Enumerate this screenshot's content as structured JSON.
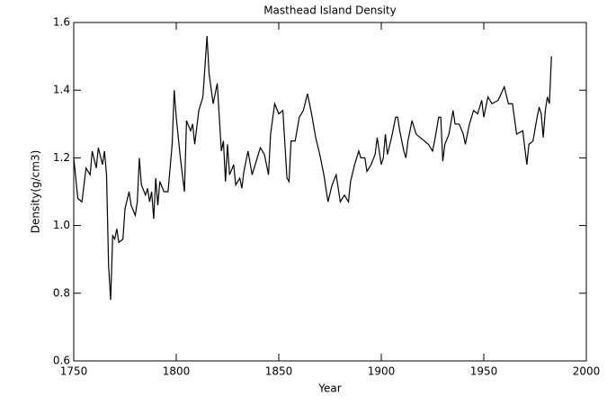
{
  "chart_data": {
    "type": "line",
    "title": "Masthead Island Density",
    "xlabel": "Year",
    "ylabel": "Density(g/cm3)",
    "color": "#000000",
    "x": [
      1750,
      1752,
      1754,
      1756,
      1758,
      1759,
      1761,
      1762,
      1764,
      1765,
      1766,
      1767,
      1768,
      1769,
      1770,
      1771,
      1772,
      1774,
      1775,
      1777,
      1778,
      1780,
      1781,
      1782,
      1783,
      1785,
      1786,
      1787,
      1788,
      1789,
      1790,
      1791,
      1792,
      1794,
      1796,
      1797,
      1798,
      1799,
      1800,
      1802,
      1804,
      1805,
      1807,
      1808,
      1809,
      1811,
      1813,
      1815,
      1816,
      1818,
      1820,
      1821,
      1822,
      1823,
      1824,
      1825,
      1826,
      1828,
      1829,
      1831,
      1832,
      1833,
      1835,
      1837,
      1839,
      1841,
      1843,
      1845,
      1846,
      1848,
      1850,
      1852,
      1854,
      1855,
      1856,
      1858,
      1860,
      1862,
      1864,
      1866,
      1868,
      1870,
      1872,
      1874,
      1876,
      1878,
      1880,
      1882,
      1884,
      1885,
      1887,
      1889,
      1890,
      1892,
      1893,
      1895,
      1897,
      1898,
      1900,
      1901,
      1902,
      1903,
      1905,
      1907,
      1908,
      1909,
      1911,
      1912,
      1913,
      1915,
      1917,
      1919,
      1921,
      1923,
      1925,
      1926,
      1928,
      1929,
      1930,
      1931,
      1933,
      1935,
      1936,
      1938,
      1940,
      1941,
      1943,
      1945,
      1947,
      1949,
      1950,
      1952,
      1954,
      1957,
      1960,
      1962,
      1964,
      1966,
      1969,
      1971,
      1972,
      1974,
      1976,
      1977,
      1978,
      1979,
      1980,
      1981,
      1982,
      1983
    ],
    "values": [
      1.2,
      1.08,
      1.07,
      1.17,
      1.15,
      1.22,
      1.17,
      1.23,
      1.18,
      1.22,
      1.15,
      0.88,
      0.78,
      0.97,
      0.96,
      0.99,
      0.95,
      0.96,
      1.05,
      1.1,
      1.06,
      1.03,
      1.07,
      1.2,
      1.12,
      1.09,
      1.11,
      1.07,
      1.1,
      1.02,
      1.14,
      1.06,
      1.13,
      1.1,
      1.1,
      1.17,
      1.24,
      1.4,
      1.32,
      1.2,
      1.1,
      1.31,
      1.28,
      1.3,
      1.24,
      1.34,
      1.38,
      1.56,
      1.45,
      1.36,
      1.42,
      1.32,
      1.22,
      1.25,
      1.13,
      1.24,
      1.15,
      1.18,
      1.12,
      1.14,
      1.11,
      1.16,
      1.22,
      1.15,
      1.19,
      1.23,
      1.21,
      1.15,
      1.27,
      1.36,
      1.33,
      1.34,
      1.14,
      1.13,
      1.25,
      1.25,
      1.32,
      1.34,
      1.39,
      1.33,
      1.26,
      1.21,
      1.15,
      1.07,
      1.12,
      1.15,
      1.07,
      1.09,
      1.07,
      1.13,
      1.18,
      1.22,
      1.2,
      1.2,
      1.16,
      1.18,
      1.21,
      1.26,
      1.18,
      1.2,
      1.27,
      1.21,
      1.26,
      1.32,
      1.32,
      1.28,
      1.22,
      1.2,
      1.25,
      1.31,
      1.27,
      1.26,
      1.25,
      1.24,
      1.22,
      1.25,
      1.32,
      1.32,
      1.19,
      1.24,
      1.27,
      1.34,
      1.3,
      1.3,
      1.27,
      1.24,
      1.3,
      1.34,
      1.33,
      1.37,
      1.32,
      1.38,
      1.36,
      1.37,
      1.41,
      1.36,
      1.36,
      1.27,
      1.28,
      1.18,
      1.24,
      1.25,
      1.32,
      1.35,
      1.33,
      1.26,
      1.34,
      1.38,
      1.36,
      1.5
    ],
    "xlim": [
      1750,
      2000
    ],
    "xticks": [
      1750,
      1800,
      1850,
      1900,
      1950,
      2000
    ],
    "ylim": [
      0.6,
      1.6
    ],
    "yticks": [
      0.6,
      0.8,
      {
        "value": 1,
        "label": "1.0"
      },
      1.2,
      1.4,
      1.6
    ]
  }
}
